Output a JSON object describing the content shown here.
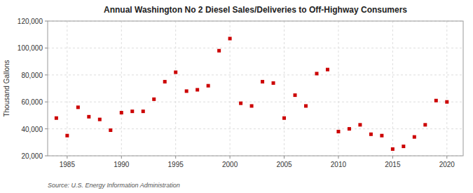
{
  "chart_data": {
    "type": "scatter",
    "title": "Annual Washington No 2 Diesel Sales/Deliveries to Off-Highway Consumers",
    "y_label": "Thousand Gallons",
    "source": "Source: U.S. Energy Information Administration",
    "color": "#cc0000",
    "marker": "square",
    "grid": true,
    "xlim": [
      1983.2,
      2021.5
    ],
    "ylim": [
      20000,
      120000
    ],
    "xticks": [
      1985,
      1990,
      1995,
      2000,
      2005,
      2010,
      2015,
      2020
    ],
    "yticks": [
      {
        "value": 20000,
        "label": "20,000"
      },
      {
        "value": 40000,
        "label": "40,000"
      },
      {
        "value": 60000,
        "label": "60,000"
      },
      {
        "value": 80000,
        "label": "80,000"
      },
      {
        "value": 100000,
        "label": "100,000"
      },
      {
        "value": 120000,
        "label": "120,000"
      }
    ],
    "x": [
      1984,
      1985,
      1986,
      1987,
      1988,
      1989,
      1990,
      1991,
      1992,
      1993,
      1994,
      1995,
      1996,
      1997,
      1998,
      1999,
      2000,
      2001,
      2002,
      2003,
      2004,
      2005,
      2006,
      2007,
      2008,
      2009,
      2010,
      2011,
      2012,
      2013,
      2014,
      2015,
      2016,
      2017,
      2018,
      2019,
      2020
    ],
    "values": [
      48000,
      35000,
      56000,
      49000,
      47000,
      39000,
      52000,
      53000,
      53000,
      62000,
      75000,
      82000,
      68000,
      69000,
      72000,
      98000,
      107000,
      59000,
      57000,
      75000,
      74000,
      48000,
      65000,
      57000,
      81000,
      84000,
      38000,
      40000,
      43000,
      36000,
      35000,
      25000,
      27000,
      34000,
      43000,
      61000,
      60000
    ]
  }
}
